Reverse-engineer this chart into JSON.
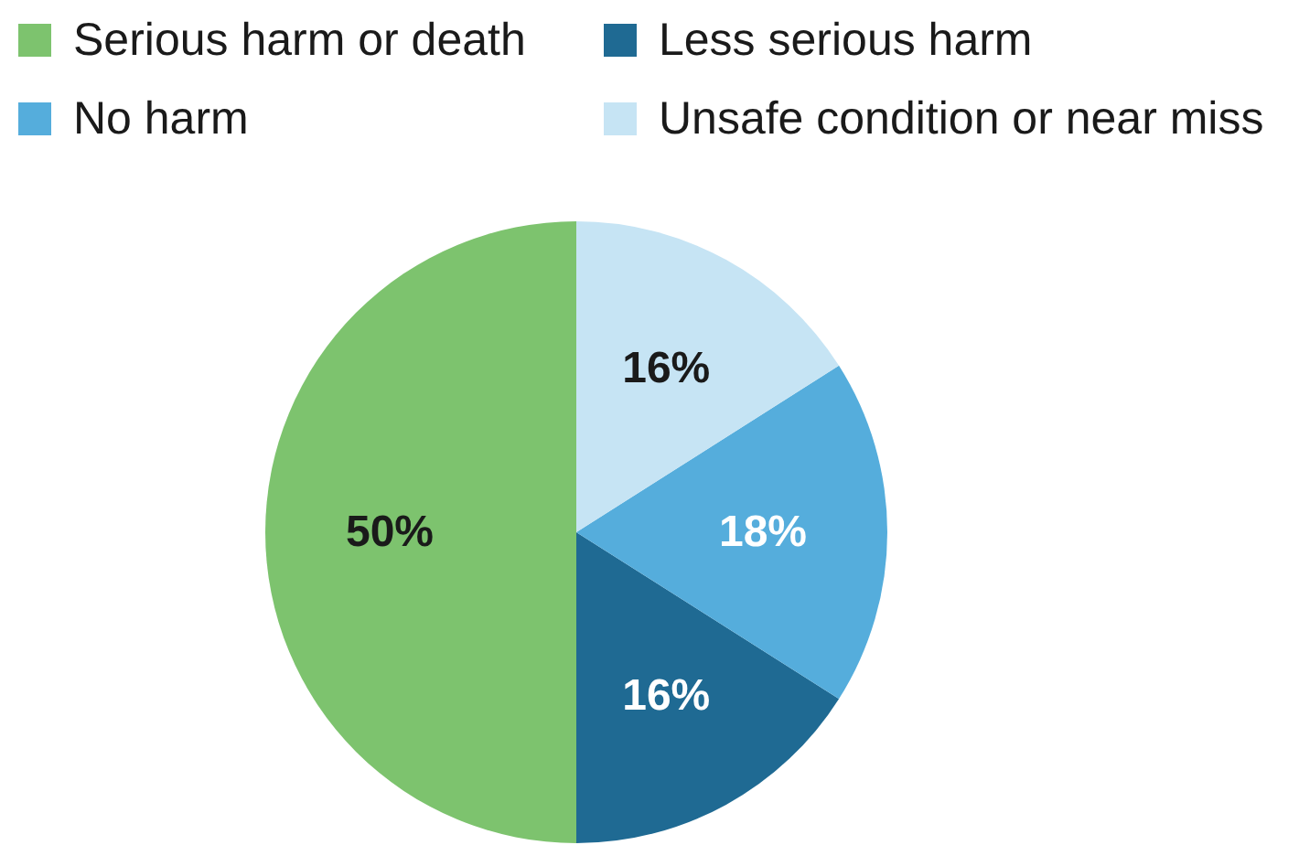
{
  "chart_data": {
    "type": "pie",
    "categories": [
      "Serious harm or death",
      "Less serious harm",
      "No harm",
      "Unsafe condition or near miss"
    ],
    "values": [
      50,
      16,
      18,
      16
    ],
    "colors": [
      "#7dc36e",
      "#1f6a93",
      "#55addc",
      "#c6e4f4"
    ],
    "value_labels": [
      "50%",
      "16%",
      "18%",
      "16%"
    ],
    "legend": "top"
  }
}
